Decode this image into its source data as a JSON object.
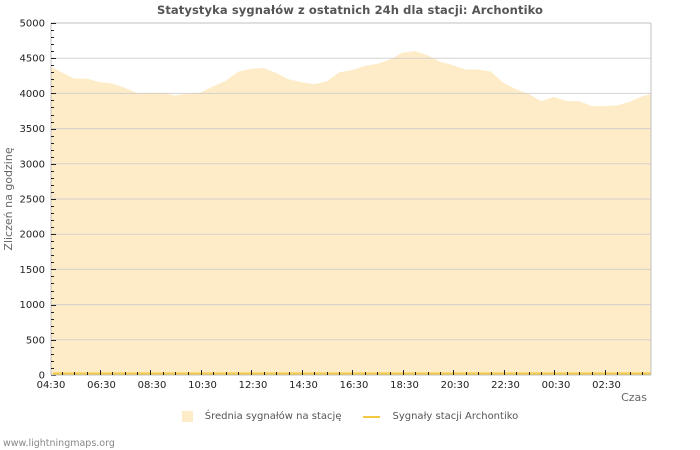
{
  "chart_data": {
    "type": "area",
    "title": "Statystyka sygnałów z ostatnich 24h dla stacji: Archontiko",
    "xlabel": "Czas",
    "ylabel": "Zliczeń na godzinę",
    "ylim": [
      0,
      5000
    ],
    "y_ticks": [
      "0",
      "500",
      "1000",
      "1500",
      "2000",
      "2500",
      "3000",
      "3500",
      "4000",
      "4500",
      "5000"
    ],
    "x_tick_labels": [
      "04:30",
      "06:30",
      "08:30",
      "10:30",
      "12:30",
      "14:30",
      "16:30",
      "18:30",
      "20:30",
      "22:30",
      "00:30",
      "02:30"
    ],
    "grid": true,
    "legend_position": "bottom",
    "x": [
      "04:30",
      "05:00",
      "05:30",
      "06:00",
      "06:30",
      "07:00",
      "07:30",
      "08:00",
      "08:30",
      "09:00",
      "09:30",
      "10:00",
      "10:30",
      "11:00",
      "11:30",
      "12:00",
      "12:30",
      "13:00",
      "13:30",
      "14:00",
      "14:30",
      "15:00",
      "15:30",
      "16:00",
      "16:30",
      "17:00",
      "17:30",
      "18:00",
      "18:30",
      "19:00",
      "19:30",
      "20:00",
      "20:30",
      "21:00",
      "21:30",
      "22:00",
      "22:30",
      "23:00",
      "23:30",
      "00:00",
      "00:30",
      "01:00",
      "01:30",
      "02:00",
      "02:30",
      "03:00",
      "03:30",
      "04:00",
      "04:30"
    ],
    "series": [
      {
        "name": "Średnia sygnałów na stację",
        "type": "area",
        "color": "#feecc8",
        "values": [
          4380,
          4300,
          4210,
          4210,
          4160,
          4140,
          4080,
          4000,
          4010,
          4010,
          3970,
          4000,
          4010,
          4100,
          4180,
          4310,
          4350,
          4360,
          4290,
          4200,
          4160,
          4130,
          4170,
          4300,
          4330,
          4390,
          4420,
          4480,
          4580,
          4600,
          4540,
          4450,
          4400,
          4340,
          4340,
          4310,
          4150,
          4060,
          3990,
          3890,
          3950,
          3890,
          3890,
          3820,
          3820,
          3830,
          3880,
          3960,
          3990
        ]
      },
      {
        "name": "Sygnały stacji Archontiko",
        "type": "line",
        "color": "#f5c842",
        "values": [
          0,
          0,
          0,
          0,
          0,
          0,
          0,
          0,
          0,
          0,
          0,
          0,
          0,
          0,
          0,
          0,
          0,
          0,
          0,
          0,
          0,
          0,
          0,
          0,
          0,
          0,
          0,
          0,
          0,
          0,
          0,
          0,
          0,
          0,
          0,
          0,
          0,
          0,
          0,
          0,
          0,
          0,
          0,
          0,
          0,
          0,
          0,
          0,
          0
        ]
      }
    ]
  },
  "legend": {
    "area_label": "Średnia sygnałów na stację",
    "line_label": "Sygnały stacji Archontiko"
  },
  "footer": {
    "site": "www.lightningmaps.org"
  },
  "colors": {
    "area_fill": "#feecc8",
    "station_line": "#f5c842",
    "grid": "#cccccc",
    "grid_on_area": "#d8c8a8",
    "axis": "#c0c0c0"
  }
}
